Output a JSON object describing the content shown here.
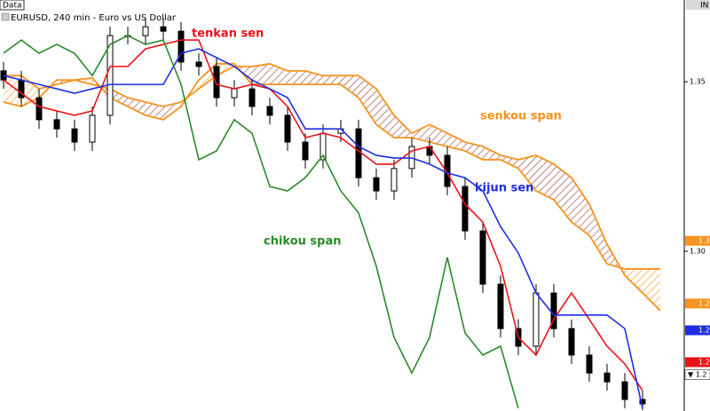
{
  "chart_data": {
    "type": "candlestick",
    "panel_label": "Data",
    "title": "EURUSD, 240 min - Euro vs US Dollar",
    "axis_header": "IN",
    "ylim": [
      1.2529,
      1.3741
    ],
    "yticks": [
      {
        "value": 1.35,
        "label": "1.35"
      },
      {
        "value": 1.3,
        "label": "1.30"
      }
    ],
    "up_color": "#ffffff",
    "down_color": "#000000",
    "open": [
      1.3532,
      1.3505,
      1.3453,
      1.3388,
      1.3361,
      1.3322,
      1.3401,
      1.3636,
      1.3636,
      1.3662,
      1.3649,
      1.3558,
      1.3545,
      1.3453,
      1.3479,
      1.3427,
      1.3401,
      1.3322,
      1.327,
      1.3348,
      1.3361,
      1.3217,
      1.3178,
      1.3244,
      1.3309,
      1.3283,
      1.3191,
      1.306,
      1.2903,
      1.2772,
      1.272,
      1.2877,
      1.2772,
      1.2694,
      1.2641,
      1.2615,
      1.2563,
      null
    ],
    "high": [
      1.3558,
      1.3532,
      1.3479,
      1.3414,
      1.3388,
      1.3427,
      1.3662,
      1.3662,
      1.3689,
      1.3689,
      1.3676,
      1.3584,
      1.3571,
      1.3505,
      1.3505,
      1.3453,
      1.3427,
      1.3348,
      1.3374,
      1.3388,
      1.3388,
      1.3244,
      1.327,
      1.3335,
      1.3335,
      1.3309,
      1.3217,
      1.3086,
      1.2929,
      1.2799,
      1.2903,
      1.2903,
      1.2799,
      1.272,
      1.2668,
      1.2641,
      1.2589,
      null
    ],
    "low": [
      1.3479,
      1.3427,
      1.3361,
      1.3335,
      1.3296,
      1.3296,
      1.3374,
      1.361,
      1.361,
      1.3623,
      1.3532,
      1.3518,
      1.3427,
      1.3427,
      1.3401,
      1.3374,
      1.3296,
      1.3244,
      1.3244,
      1.3322,
      1.3191,
      1.3152,
      1.3152,
      1.3217,
      1.3257,
      1.3165,
      1.3034,
      1.2877,
      1.2746,
      1.2694,
      1.2694,
      1.2746,
      1.2668,
      1.2615,
      1.2589,
      1.2537,
      1.2532,
      null
    ],
    "close": [
      1.3505,
      1.3453,
      1.3388,
      1.3361,
      1.3322,
      1.3401,
      1.3636,
      1.3636,
      1.3662,
      1.3649,
      1.3558,
      1.3545,
      1.3453,
      1.3479,
      1.3427,
      1.3401,
      1.3322,
      1.327,
      1.3348,
      1.3361,
      1.3217,
      1.3178,
      1.3244,
      1.3309,
      1.3283,
      1.3191,
      1.306,
      1.2903,
      1.2772,
      1.272,
      1.2877,
      1.2772,
      1.2694,
      1.2641,
      1.2615,
      1.2563,
      1.255,
      null
    ],
    "series": [
      {
        "name": "tenkan sen",
        "color": "#e8141a",
        "values": [
          1.3505,
          1.3466,
          1.3427,
          1.3414,
          1.3401,
          1.3414,
          1.3545,
          1.3545,
          1.3597,
          1.361,
          1.3623,
          1.3623,
          1.3492,
          1.3479,
          1.3492,
          1.3479,
          1.3427,
          1.3335,
          1.3348,
          1.3335,
          1.3296,
          1.3257,
          1.3257,
          1.3296,
          1.3309,
          1.3231,
          1.3139,
          1.3086,
          1.2956,
          1.2746,
          1.2694,
          1.2799,
          1.2877,
          1.2799,
          1.272,
          1.2668,
          1.2589,
          null
        ]
      },
      {
        "name": "kijun sen",
        "color": "#1f2ee0",
        "values": [
          1.3518,
          1.3505,
          1.3492,
          1.3479,
          1.3466,
          1.3479,
          1.3492,
          1.3492,
          1.3492,
          1.3492,
          1.3584,
          1.3597,
          1.3571,
          1.3545,
          1.3505,
          1.3479,
          1.3453,
          1.3361,
          1.3361,
          1.3361,
          1.3309,
          1.3283,
          1.3275,
          1.3275,
          1.3257,
          1.3231,
          1.3217,
          1.3178,
          1.3073,
          1.2995,
          1.2877,
          1.2812,
          1.2812,
          1.2812,
          1.2812,
          1.2772,
          1.2537,
          null
        ]
      },
      {
        "name": "chikou span",
        "color": "#2a8a2a",
        "values": [
          1.3584,
          1.3623,
          1.3584,
          1.361,
          1.3584,
          1.3518,
          1.361,
          1.3636,
          1.361,
          1.3623,
          1.3492,
          1.327,
          1.3296,
          1.3388,
          1.3348,
          1.3191,
          1.3178,
          1.3217,
          1.3283,
          1.3178,
          1.3113,
          1.2956,
          1.2746,
          1.2641,
          1.2746,
          1.2982,
          1.2759,
          1.2694,
          1.272,
          1.2537,
          null,
          null,
          null,
          null,
          null,
          null,
          null,
          null
        ]
      }
    ],
    "cloud": {
      "name": "senkou span",
      "color": "#f7931e",
      "hatch_color": "#9a3a2a",
      "span_a": [
        1.344,
        1.3427,
        1.3453,
        1.3505,
        1.3505,
        1.3492,
        1.3479,
        1.3453,
        1.344,
        1.3427,
        1.344,
        1.3479,
        1.3518,
        1.3545,
        1.3545,
        1.3553,
        1.3532,
        1.3532,
        1.3518,
        1.3518,
        1.3518,
        1.3479,
        1.3401,
        1.3348,
        1.3374,
        1.3348,
        1.3322,
        1.3309,
        1.3283,
        1.327,
        1.3283,
        1.3257,
        1.3217,
        1.3139,
        1.3021,
        1.2929,
        1.2877,
        1.2825
      ],
      "span_b": [
        1.3518,
        1.3518,
        1.3479,
        1.3492,
        1.3505,
        1.3511,
        1.3453,
        1.3427,
        1.3401,
        1.3388,
        1.3427,
        1.3505,
        1.3553,
        1.3553,
        1.3492,
        1.3492,
        1.3492,
        1.3492,
        1.3492,
        1.3492,
        1.3453,
        1.3374,
        1.3335,
        1.3335,
        1.3322,
        1.3309,
        1.3296,
        1.327,
        1.327,
        1.3244,
        1.3178,
        1.3152,
        1.3086,
        1.3047,
        1.2963,
        1.2948,
        1.2948,
        1.2948
      ]
    },
    "price_tags": [
      {
        "value": 1.3031,
        "label": "1.3",
        "color": "#f7931e"
      },
      {
        "value": 1.2846,
        "label": "1.2",
        "color": "#f7931e"
      },
      {
        "value": 1.2767,
        "label": "1.2",
        "color": "#1f2ee0"
      },
      {
        "value": 1.2673,
        "label": "1.2",
        "color": "#e8141a"
      },
      {
        "value": 1.2636,
        "label": "▼ 1.2",
        "color": "#ffffff"
      }
    ]
  }
}
